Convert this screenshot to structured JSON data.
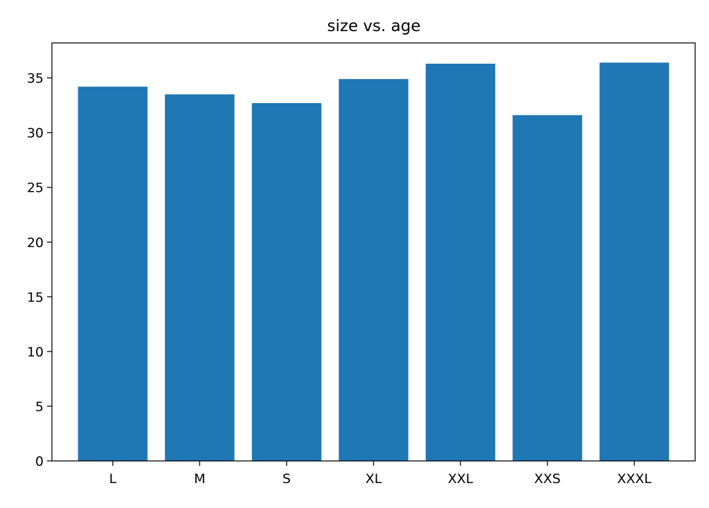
{
  "chart_data": {
    "type": "bar",
    "title": "size vs. age",
    "xlabel": "",
    "ylabel": "",
    "categories": [
      "L",
      "M",
      "S",
      "XL",
      "XXL",
      "XXS",
      "XXXL"
    ],
    "values": [
      34.2,
      33.5,
      32.7,
      34.9,
      36.3,
      31.6,
      36.4
    ],
    "ylim": [
      0,
      38.2
    ],
    "yticks": [
      0,
      5,
      10,
      15,
      20,
      25,
      30,
      35
    ],
    "bar_color": "#1f77b4",
    "grid": false,
    "legend": "none"
  }
}
